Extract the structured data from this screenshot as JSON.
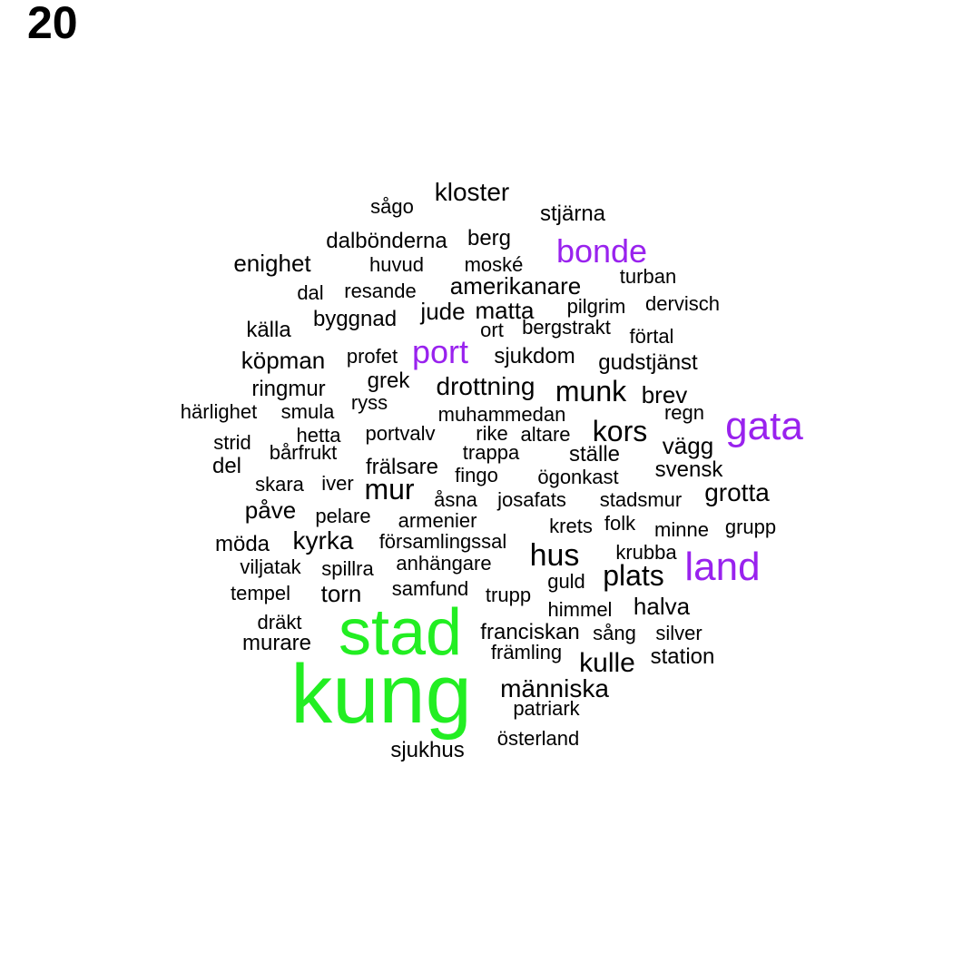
{
  "panel_number": "20",
  "colors": {
    "top": "#22ee22",
    "mid": "#9922ee",
    "base": "#000000"
  },
  "words": [
    {
      "text": "kung",
      "tier": "top"
    },
    {
      "text": "stad",
      "tier": "top"
    },
    {
      "text": "gata",
      "tier": "mid"
    },
    {
      "text": "land",
      "tier": "mid"
    },
    {
      "text": "bonde",
      "tier": "mid"
    },
    {
      "text": "port",
      "tier": "mid"
    },
    {
      "text": "hus",
      "tier": "base"
    },
    {
      "text": "kloster",
      "tier": "base"
    },
    {
      "text": "stjärna",
      "tier": "base"
    },
    {
      "text": "sågo",
      "tier": "base"
    },
    {
      "text": "dalbönderna",
      "tier": "base"
    },
    {
      "text": "berg",
      "tier": "base"
    },
    {
      "text": "enighet",
      "tier": "base"
    },
    {
      "text": "huvud",
      "tier": "base"
    },
    {
      "text": "moské",
      "tier": "base"
    },
    {
      "text": "turban",
      "tier": "base"
    },
    {
      "text": "amerikanare",
      "tier": "base"
    },
    {
      "text": "dal",
      "tier": "base"
    },
    {
      "text": "resande",
      "tier": "base"
    },
    {
      "text": "pilgrim",
      "tier": "base"
    },
    {
      "text": "dervisch",
      "tier": "base"
    },
    {
      "text": "jude",
      "tier": "base"
    },
    {
      "text": "matta",
      "tier": "base"
    },
    {
      "text": "byggnad",
      "tier": "base"
    },
    {
      "text": "källa",
      "tier": "base"
    },
    {
      "text": "ort",
      "tier": "base"
    },
    {
      "text": "bergstrakt",
      "tier": "base"
    },
    {
      "text": "förtal",
      "tier": "base"
    },
    {
      "text": "köpman",
      "tier": "base"
    },
    {
      "text": "profet",
      "tier": "base"
    },
    {
      "text": "sjukdom",
      "tier": "base"
    },
    {
      "text": "gudstjänst",
      "tier": "base"
    },
    {
      "text": "ringmur",
      "tier": "base"
    },
    {
      "text": "grek",
      "tier": "base"
    },
    {
      "text": "drottning",
      "tier": "base"
    },
    {
      "text": "munk",
      "tier": "base"
    },
    {
      "text": "brev",
      "tier": "base"
    },
    {
      "text": "härlighet",
      "tier": "base"
    },
    {
      "text": "smula",
      "tier": "base"
    },
    {
      "text": "ryss",
      "tier": "base"
    },
    {
      "text": "muhammedan",
      "tier": "base"
    },
    {
      "text": "regn",
      "tier": "base"
    },
    {
      "text": "hetta",
      "tier": "base"
    },
    {
      "text": "portvalv",
      "tier": "base"
    },
    {
      "text": "rike",
      "tier": "base"
    },
    {
      "text": "altare",
      "tier": "base"
    },
    {
      "text": "kors",
      "tier": "base"
    },
    {
      "text": "strid",
      "tier": "base"
    },
    {
      "text": "bårfrukt",
      "tier": "base"
    },
    {
      "text": "trappa",
      "tier": "base"
    },
    {
      "text": "ställe",
      "tier": "base"
    },
    {
      "text": "vägg",
      "tier": "base"
    },
    {
      "text": "del",
      "tier": "base"
    },
    {
      "text": "frälsare",
      "tier": "base"
    },
    {
      "text": "fingo",
      "tier": "base"
    },
    {
      "text": "ögonkast",
      "tier": "base"
    },
    {
      "text": "svensk",
      "tier": "base"
    },
    {
      "text": "skara",
      "tier": "base"
    },
    {
      "text": "iver",
      "tier": "base"
    },
    {
      "text": "mur",
      "tier": "base"
    },
    {
      "text": "åsna",
      "tier": "base"
    },
    {
      "text": "josafats",
      "tier": "base"
    },
    {
      "text": "stadsmur",
      "tier": "base"
    },
    {
      "text": "grotta",
      "tier": "base"
    },
    {
      "text": "påve",
      "tier": "base"
    },
    {
      "text": "pelare",
      "tier": "base"
    },
    {
      "text": "armenier",
      "tier": "base"
    },
    {
      "text": "krets",
      "tier": "base"
    },
    {
      "text": "folk",
      "tier": "base"
    },
    {
      "text": "minne",
      "tier": "base"
    },
    {
      "text": "grupp",
      "tier": "base"
    },
    {
      "text": "möda",
      "tier": "base"
    },
    {
      "text": "kyrka",
      "tier": "base"
    },
    {
      "text": "församlingssal",
      "tier": "base"
    },
    {
      "text": "krubba",
      "tier": "base"
    },
    {
      "text": "viljatak",
      "tier": "base"
    },
    {
      "text": "spillra",
      "tier": "base"
    },
    {
      "text": "anhängare",
      "tier": "base"
    },
    {
      "text": "plats",
      "tier": "base"
    },
    {
      "text": "guld",
      "tier": "base"
    },
    {
      "text": "tempel",
      "tier": "base"
    },
    {
      "text": "torn",
      "tier": "base"
    },
    {
      "text": "samfund",
      "tier": "base"
    },
    {
      "text": "trupp",
      "tier": "base"
    },
    {
      "text": "himmel",
      "tier": "base"
    },
    {
      "text": "halva",
      "tier": "base"
    },
    {
      "text": "dräkt",
      "tier": "base"
    },
    {
      "text": "franciskan",
      "tier": "base"
    },
    {
      "text": "sång",
      "tier": "base"
    },
    {
      "text": "silver",
      "tier": "base"
    },
    {
      "text": "murare",
      "tier": "base"
    },
    {
      "text": "främling",
      "tier": "base"
    },
    {
      "text": "kulle",
      "tier": "base"
    },
    {
      "text": "station",
      "tier": "base"
    },
    {
      "text": "människa",
      "tier": "base"
    },
    {
      "text": "patriark",
      "tier": "base"
    },
    {
      "text": "österland",
      "tier": "base"
    },
    {
      "text": "sjukhus",
      "tier": "base"
    }
  ]
}
